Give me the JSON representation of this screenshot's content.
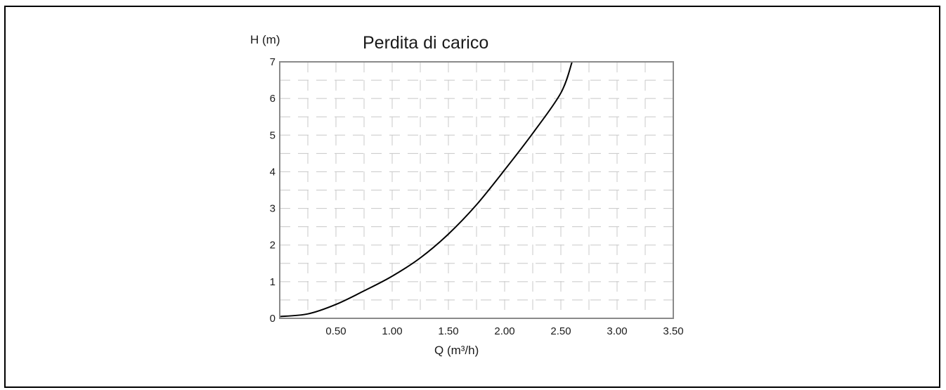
{
  "chart_data": {
    "type": "line",
    "title": "Perdita di carico",
    "xlabel": "Q (m³/h)",
    "ylabel": "H (m)",
    "xlim": [
      0,
      3.5
    ],
    "ylim": [
      0,
      7
    ],
    "x_ticks": [
      "0.50",
      "1.00",
      "1.50",
      "2.00",
      "2.50",
      "3.00",
      "3.50"
    ],
    "x_tick_values": [
      0.5,
      1.0,
      1.5,
      2.0,
      2.5,
      3.0,
      3.5
    ],
    "y_ticks": [
      "0",
      "1",
      "2",
      "3",
      "4",
      "5",
      "6",
      "7"
    ],
    "y_tick_values": [
      0,
      1,
      2,
      3,
      4,
      5,
      6,
      7
    ],
    "grid": true,
    "grid_style": "dashed",
    "series": [
      {
        "color": "#000000",
        "x": [
          0.0,
          0.25,
          0.5,
          0.75,
          1.0,
          1.25,
          1.5,
          1.75,
          2.0,
          2.25,
          2.5,
          2.6
        ],
        "y": [
          0.05,
          0.12,
          0.38,
          0.75,
          1.15,
          1.65,
          2.3,
          3.1,
          4.05,
          5.05,
          6.15,
          7.0
        ]
      }
    ]
  }
}
